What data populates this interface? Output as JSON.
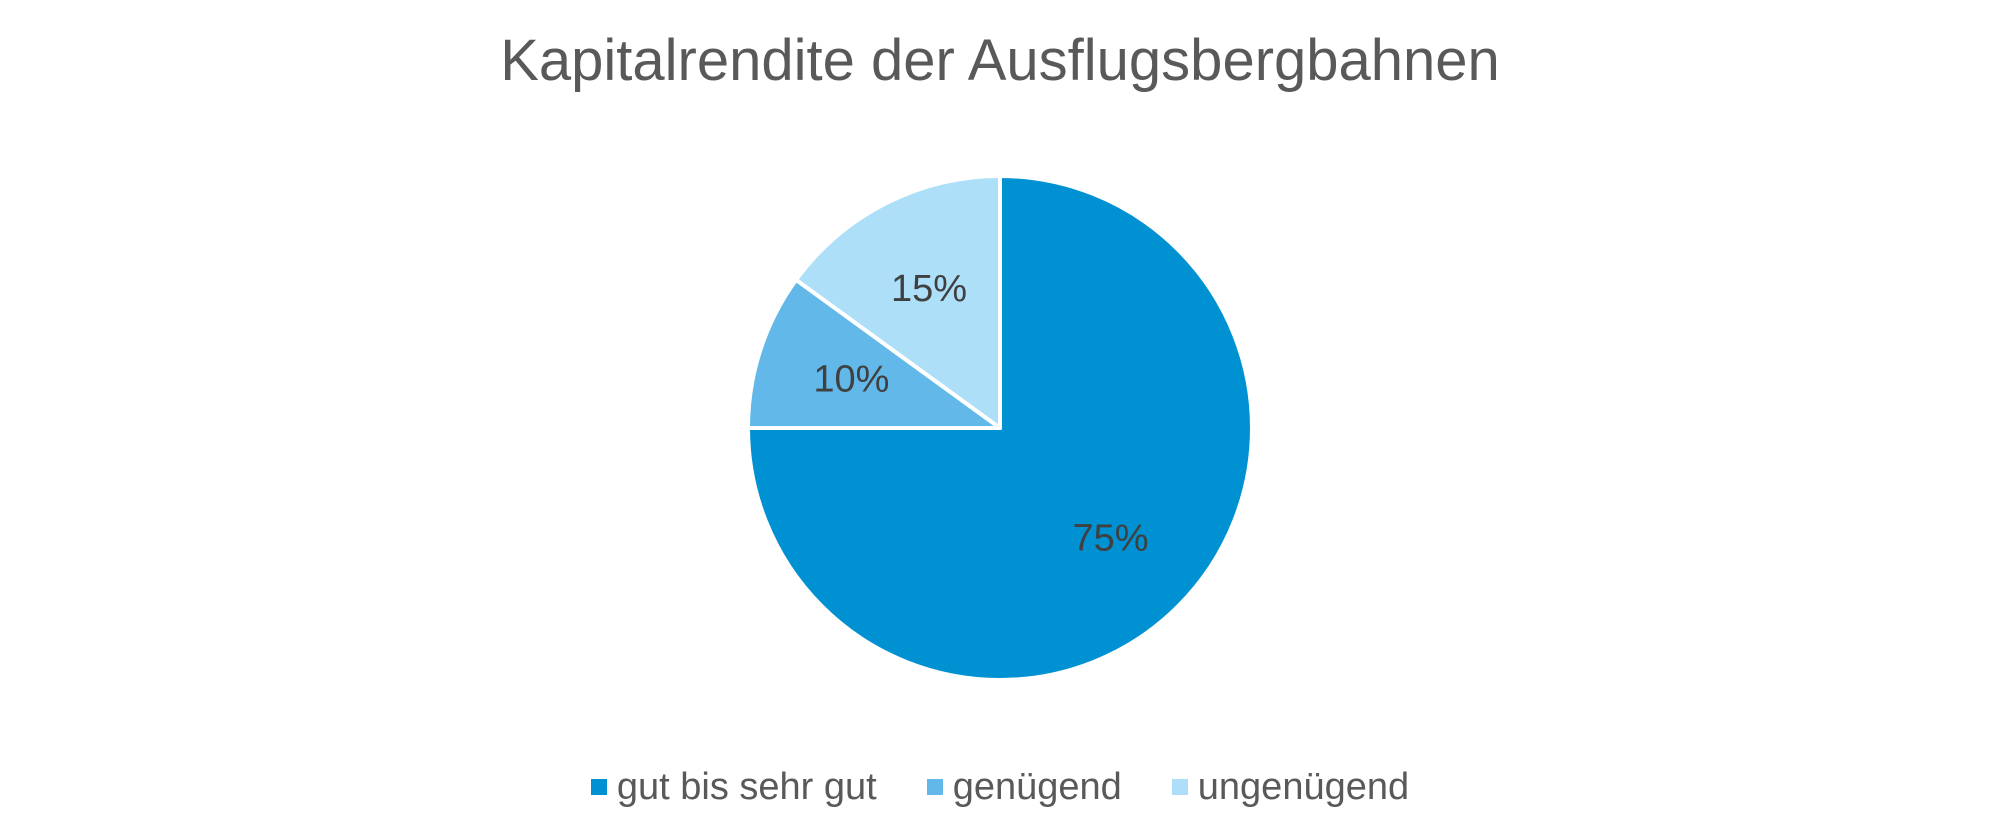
{
  "chart_data": {
    "type": "pie",
    "title": "Kapitalrendite der Ausflugsbergbahnen",
    "slices": [
      {
        "label": "gut bis sehr gut",
        "value": 75,
        "display": "75%",
        "color": "#0091d2"
      },
      {
        "label": "genügend",
        "value": 10,
        "display": "10%",
        "color": "#62b8e8"
      },
      {
        "label": "ungenügend",
        "value": 15,
        "display": "15%",
        "color": "#addff9"
      }
    ],
    "legend_position": "bottom"
  }
}
